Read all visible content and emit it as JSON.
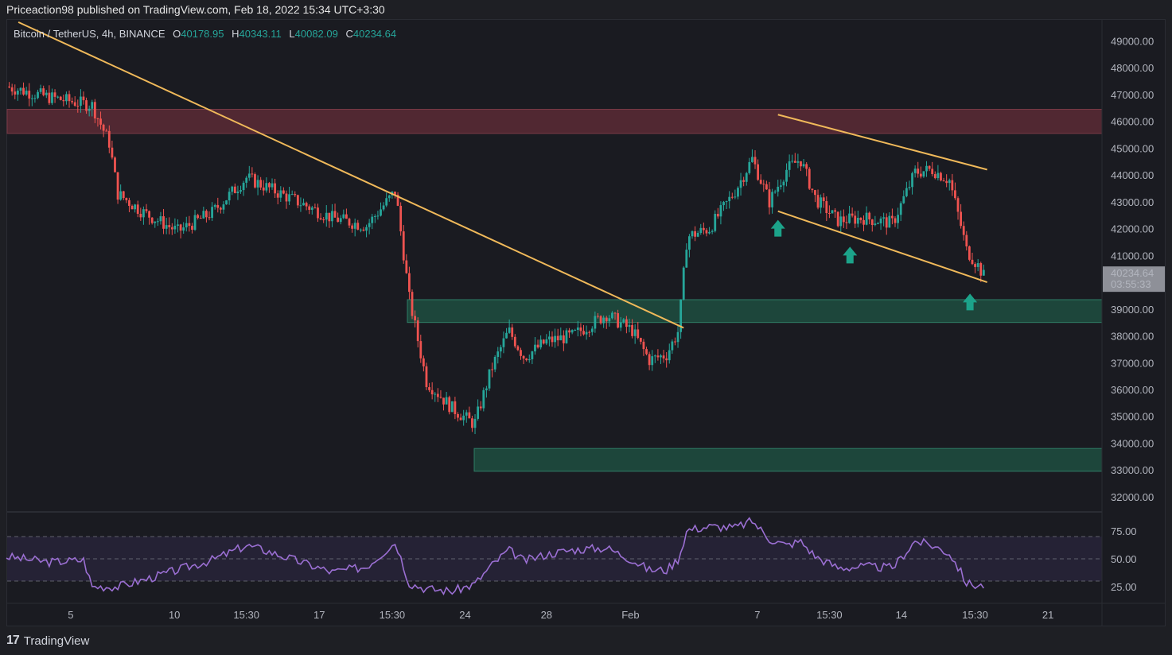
{
  "header": {
    "published_text": "Priceaction98 published on TradingView.com, Feb 18, 2022 15:34 UTC+3:30"
  },
  "legend": {
    "symbol": "Bitcoin / TetherUS, 4h, BINANCE",
    "open_label": "O",
    "open_value": "40178.95",
    "high_label": "H",
    "high_value": "40343.11",
    "low_label": "L",
    "low_value": "40082.09",
    "close_label": "C",
    "close_value": "40234.64"
  },
  "price_tag": {
    "price": "40234.64",
    "countdown": "03:55:33"
  },
  "footer": {
    "logo_glyph": "17",
    "brand": "TradingView"
  },
  "colors": {
    "bull": "#26a69a",
    "bear": "#ef5350",
    "trendline": "#f0b95a",
    "resistance_zone": "#5c2a35",
    "support_zone": "#1f4d40",
    "rsi_line": "#9b6fd3",
    "arrow": "#1ca38a"
  },
  "chart_data": [
    {
      "type": "candlestick",
      "title": "Bitcoin / TetherUS, 4h, BINANCE",
      "ylim": [
        31500,
        49500
      ],
      "y_ticks": [
        "49000.00",
        "48000.00",
        "47000.00",
        "46000.00",
        "45000.00",
        "44000.00",
        "43000.00",
        "42000.00",
        "41000.00",
        "40000.00",
        "39000.00",
        "38000.00",
        "37000.00",
        "36000.00",
        "35000.00",
        "34000.00",
        "33000.00",
        "32000.00"
      ],
      "x_ticks": [
        "5",
        "10",
        "15:30",
        "17",
        "15:30",
        "24",
        "28",
        "Feb",
        "7",
        "15:30",
        "14",
        "15:30",
        "21"
      ],
      "close_path": [
        [
          0,
          47300
        ],
        [
          2.5,
          46900
        ],
        [
          5,
          46600
        ],
        [
          6,
          45200
        ],
        [
          6.5,
          43300
        ],
        [
          8,
          42600
        ],
        [
          10,
          41900
        ],
        [
          12,
          42600
        ],
        [
          14,
          43900
        ],
        [
          15,
          43600
        ],
        [
          17,
          43000
        ],
        [
          19,
          42400
        ],
        [
          21,
          42100
        ],
        [
          22.7,
          43400
        ],
        [
          23.5,
          39400
        ],
        [
          24.5,
          36300
        ],
        [
          26,
          35300
        ],
        [
          27.3,
          34700
        ],
        [
          28.3,
          36800
        ],
        [
          29.3,
          38200
        ],
        [
          30.2,
          37200
        ],
        [
          31.5,
          37800
        ],
        [
          33,
          38000
        ],
        [
          35,
          38800
        ],
        [
          36.5,
          38200
        ],
        [
          37.5,
          37100
        ],
        [
          38.5,
          37300
        ],
        [
          39.2,
          38200
        ],
        [
          39.7,
          41700
        ],
        [
          41,
          42000
        ],
        [
          42.5,
          43400
        ],
        [
          43.5,
          44600
        ],
        [
          44.5,
          43000
        ],
        [
          45.5,
          44200
        ],
        [
          46.3,
          44600
        ],
        [
          47.2,
          43100
        ],
        [
          48.5,
          42300
        ],
        [
          50,
          42400
        ],
        [
          51.7,
          42200
        ],
        [
          53,
          44100
        ],
        [
          54,
          44200
        ],
        [
          55,
          43800
        ],
        [
          55.6,
          42300
        ],
        [
          56,
          41200
        ],
        [
          56.7,
          40600
        ],
        [
          57,
          40235
        ]
      ],
      "last_price": 40234.64,
      "zones": [
        {
          "name": "resistance",
          "from": 45550,
          "to": 46450
        },
        {
          "name": "support-upper",
          "from": 38500,
          "to": 39350
        },
        {
          "name": "support-lower",
          "from": 32950,
          "to": 33800
        }
      ],
      "trendlines": [
        {
          "name": "long-term-downtrend",
          "points": [
            [
              0.7,
              49700
            ],
            [
              39.5,
              38300
            ]
          ]
        },
        {
          "name": "channel-upper",
          "points": [
            [
              45,
              46250
            ],
            [
              57.2,
              44200
            ]
          ]
        },
        {
          "name": "channel-lower",
          "points": [
            [
              45,
              42650
            ],
            [
              57.2,
              40000
            ]
          ]
        }
      ],
      "markers": [
        {
          "type": "up-arrow",
          "x": 45,
          "y": 42000
        },
        {
          "type": "up-arrow",
          "x": 49.2,
          "y": 41000
        },
        {
          "type": "up-arrow",
          "x": 56.2,
          "y": 39250
        }
      ]
    },
    {
      "type": "line",
      "series": [
        {
          "name": "",
          "values": [
            [
              0,
              52
            ],
            [
              2.5,
              47
            ],
            [
              4.5,
              49
            ],
            [
              5,
              25
            ],
            [
              6.5,
              25
            ],
            [
              8,
              31
            ],
            [
              10,
              40
            ],
            [
              12,
              49
            ],
            [
              14,
              62
            ],
            [
              15,
              58
            ],
            [
              17,
              48
            ],
            [
              19,
              38
            ],
            [
              21,
              43
            ],
            [
              22.7,
              65
            ],
            [
              23.5,
              28
            ],
            [
              24.5,
              23
            ],
            [
              26,
              21
            ],
            [
              27.3,
              27
            ],
            [
              28.3,
              44
            ],
            [
              29.3,
              58
            ],
            [
              30.2,
              48
            ],
            [
              31.5,
              54
            ],
            [
              33,
              58
            ],
            [
              35,
              60
            ],
            [
              36.5,
              49
            ],
            [
              37.5,
              40
            ],
            [
              38.5,
              40
            ],
            [
              39.2,
              50
            ],
            [
              39.7,
              76
            ],
            [
              41,
              79
            ],
            [
              42.5,
              78
            ],
            [
              43.5,
              84
            ],
            [
              44.5,
              68
            ],
            [
              45.5,
              62
            ],
            [
              46.3,
              66
            ],
            [
              47.2,
              52
            ],
            [
              48.5,
              42
            ],
            [
              50,
              43
            ],
            [
              51.7,
              42
            ],
            [
              53,
              66
            ],
            [
              54,
              62
            ],
            [
              55,
              55
            ],
            [
              55.6,
              40
            ],
            [
              56,
              28
            ],
            [
              56.7,
              26
            ],
            [
              57,
              26
            ]
          ]
        }
      ],
      "ylim": [
        15,
        90
      ],
      "y_ticks": [
        "75.00",
        "50.00",
        "25.00"
      ],
      "levels": [
        70,
        50,
        30
      ]
    }
  ]
}
